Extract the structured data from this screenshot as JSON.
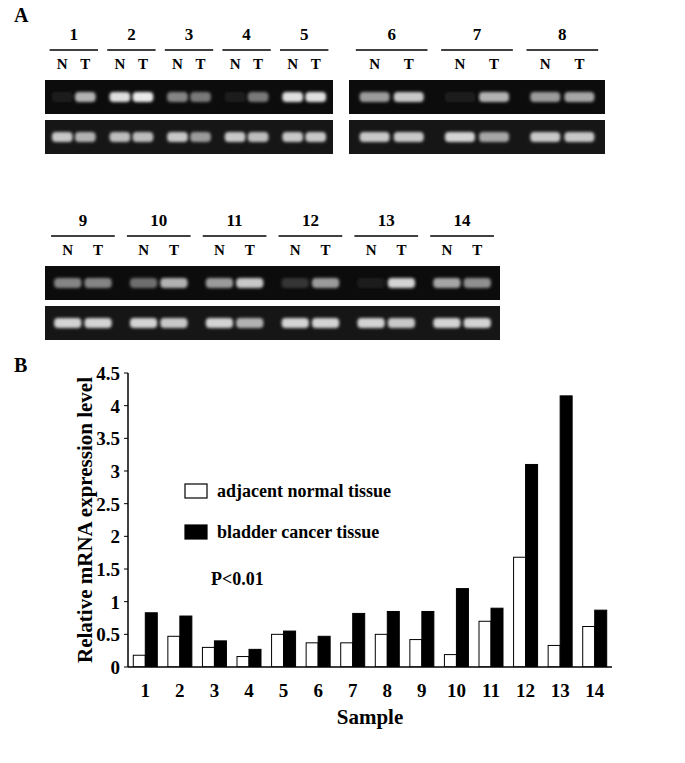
{
  "figure": {
    "panel_labels": [
      "A",
      "B"
    ],
    "lanes": [
      "N",
      "T"
    ],
    "gels": [
      {
        "samples": [
          {
            "label": "1",
            "target": [
              0.05,
              0.7
            ],
            "reference": [
              0.8,
              0.7
            ]
          },
          {
            "label": "2",
            "target": [
              0.9,
              0.95
            ],
            "reference": [
              0.75,
              0.75
            ]
          },
          {
            "label": "3",
            "target": [
              0.5,
              0.45
            ],
            "reference": [
              0.8,
              0.6
            ]
          },
          {
            "label": "4",
            "target": [
              0.05,
              0.45
            ],
            "reference": [
              0.8,
              0.75
            ]
          },
          {
            "label": "5",
            "target": [
              0.9,
              0.9
            ],
            "reference": [
              0.8,
              0.8
            ]
          }
        ]
      },
      {
        "samples": [
          {
            "label": "6",
            "target": [
              0.6,
              0.8
            ],
            "reference": [
              0.8,
              0.8
            ]
          },
          {
            "label": "7",
            "target": [
              0.05,
              0.7
            ],
            "reference": [
              0.85,
              0.65
            ]
          },
          {
            "label": "8",
            "target": [
              0.6,
              0.65
            ],
            "reference": [
              0.8,
              0.8
            ]
          }
        ]
      },
      {
        "samples": [
          {
            "label": "9",
            "target": [
              0.5,
              0.5
            ],
            "reference": [
              0.85,
              0.85
            ]
          },
          {
            "label": "10",
            "target": [
              0.4,
              0.7
            ],
            "reference": [
              0.85,
              0.8
            ]
          },
          {
            "label": "11",
            "target": [
              0.6,
              0.8
            ],
            "reference": [
              0.85,
              0.7
            ]
          },
          {
            "label": "12",
            "target": [
              0.15,
              0.6
            ],
            "reference": [
              0.85,
              0.85
            ]
          },
          {
            "label": "13",
            "target": [
              0.05,
              0.85
            ],
            "reference": [
              0.85,
              0.8
            ]
          },
          {
            "label": "14",
            "target": [
              0.65,
              0.55
            ],
            "reference": [
              0.85,
              0.85
            ]
          }
        ]
      }
    ]
  },
  "chart_data": {
    "type": "bar",
    "x_label": "Sample",
    "y_label": "Relative mRNA expression level",
    "annotation": "P<0.01",
    "categories": [
      "1",
      "2",
      "3",
      "4",
      "5",
      "6",
      "7",
      "8",
      "9",
      "10",
      "11",
      "12",
      "13",
      "14"
    ],
    "series": [
      {
        "name": "adjacent normal tissue",
        "color": "#ffffff",
        "values": [
          0.18,
          0.47,
          0.3,
          0.16,
          0.5,
          0.37,
          0.37,
          0.5,
          0.42,
          0.19,
          0.7,
          1.68,
          0.33,
          0.62
        ]
      },
      {
        "name": "bladder cancer tissue",
        "color": "#000000",
        "values": [
          0.83,
          0.78,
          0.4,
          0.27,
          0.55,
          0.47,
          0.82,
          0.85,
          0.85,
          1.2,
          0.9,
          3.1,
          4.15,
          0.87
        ]
      }
    ],
    "ylim": [
      0,
      4.5
    ],
    "yticks": [
      0,
      0.5,
      1,
      1.5,
      2,
      2.5,
      3,
      3.5,
      4,
      4.5
    ],
    "grid": false,
    "legend": "upper left"
  }
}
